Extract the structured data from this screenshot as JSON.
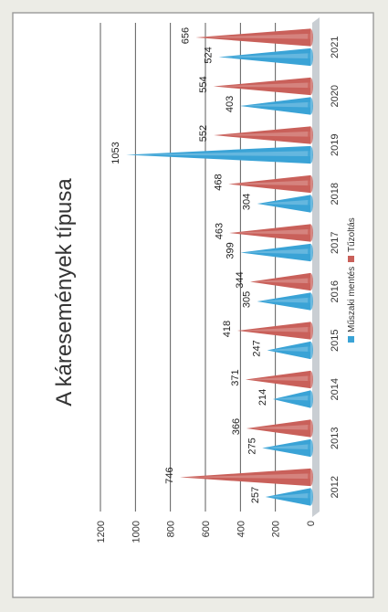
{
  "chart_data": {
    "type": "bar",
    "title": "A káresemények típusa",
    "categories": [
      "2012",
      "2013",
      "2014",
      "2015",
      "2016",
      "2017",
      "2018",
      "2019",
      "2020",
      "2021"
    ],
    "series": [
      {
        "name": "Műszaki mentés",
        "color": "#3aa3d6",
        "values": [
          257,
          275,
          214,
          247,
          305,
          399,
          304,
          1053,
          403,
          524
        ]
      },
      {
        "name": "Tűzoltás",
        "color": "#c9605a",
        "values": [
          746,
          366,
          371,
          418,
          344,
          463,
          468,
          552,
          554,
          656
        ]
      }
    ],
    "ylim": [
      0,
      1200
    ],
    "yticks": [
      0,
      200,
      400,
      600,
      800,
      1000,
      1200
    ],
    "grid": true,
    "legend_position": "bottom",
    "orientation": "rotated-page"
  }
}
